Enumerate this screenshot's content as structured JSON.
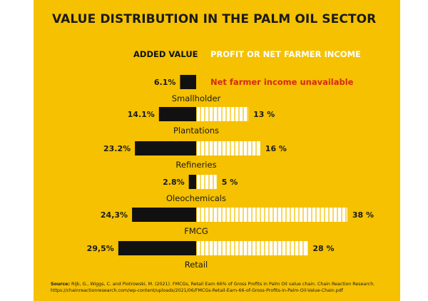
{
  "title": "VALUE DISTRIBUTION IN THE PALM OIL SECTOR",
  "legend": {
    "added_value": "ADDED VALUE",
    "profit": "PROFIT OR NET FARMER INCOME"
  },
  "source": {
    "label": "Source:",
    "text": "Rijk, G., Wiggs, C. and Piotrowski, M. (2021). FMCGs, Retail Earn 66% of Gross Profits in Palm Oil value chain. Chain Reaction Research.",
    "url": "https://chainreactionresearch.com/wp-content/uploads/2021/06/FMCGs-Retail-Earn-66-of-Gross-Profits-in-Palm-Oil-Value-Chain.pdf"
  },
  "colors": {
    "background": "#f5c100",
    "added_value": "#111111",
    "profit": "#ffffff",
    "note": "#d42a16"
  },
  "chart_data": {
    "type": "bar",
    "orientation": "horizontal-diverging",
    "categories": [
      "Smallholder",
      "Plantations",
      "Refineries",
      "Oleochemicals",
      "FMCG",
      "Retail"
    ],
    "series": [
      {
        "name": "ADDED VALUE",
        "values": [
          6.1,
          14.1,
          23.2,
          2.8,
          24.3,
          29.5
        ],
        "labels": [
          "6.1%",
          "14.1%",
          "23.2%",
          "2.8%",
          "24,3%",
          "29,5%"
        ]
      },
      {
        "name": "PROFIT OR NET FARMER INCOME",
        "values": [
          null,
          13,
          16,
          5,
          38,
          28
        ],
        "labels": [
          "",
          "13 %",
          "16 %",
          "5 %",
          "38 %",
          "28 %"
        ]
      }
    ],
    "annotations": [
      {
        "category": "Smallholder",
        "text": "Net farmer income unavailable"
      }
    ]
  }
}
